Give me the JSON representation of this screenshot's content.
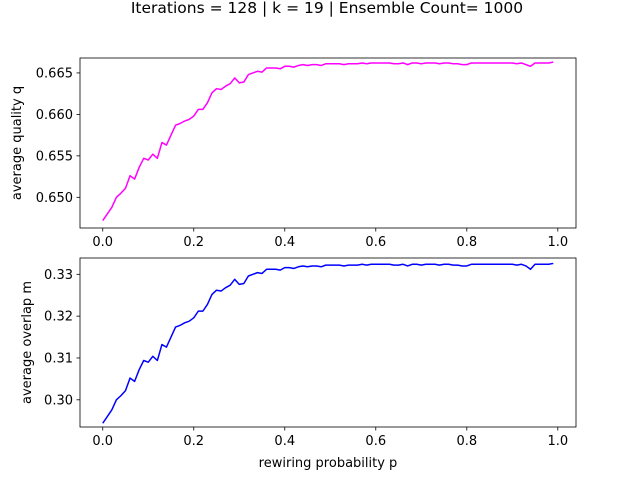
{
  "figure": {
    "suptitle": "Iterations = 128 |  k = 19 | Ensemble Count= 1000"
  },
  "chart_data": [
    {
      "type": "line",
      "xlabel": "rewiring probability p",
      "ylabel": "average quality q",
      "xlim": [
        -0.05,
        1.04
      ],
      "ylim": [
        0.6463,
        0.6668
      ],
      "xticks": [
        0.0,
        0.2,
        0.4,
        0.6,
        0.8,
        1.0
      ],
      "xtick_labels": [
        "0.0",
        "0.2",
        "0.4",
        "0.6",
        "0.8",
        "1.0"
      ],
      "yticks": [
        0.65,
        0.655,
        0.66,
        0.665
      ],
      "ytick_labels": [
        "0.650",
        "0.655",
        "0.660",
        "0.665"
      ],
      "grid": false,
      "series": [
        {
          "color": "#ff00ff",
          "x": [
            0.0,
            0.01,
            0.02,
            0.03,
            0.04,
            0.05,
            0.06,
            0.07,
            0.08,
            0.09,
            0.1,
            0.11,
            0.12,
            0.13,
            0.14,
            0.15,
            0.16,
            0.17,
            0.18,
            0.19,
            0.2,
            0.21,
            0.22,
            0.23,
            0.24,
            0.25,
            0.26,
            0.27,
            0.28,
            0.29,
            0.3,
            0.31,
            0.32,
            0.33,
            0.34,
            0.35,
            0.36,
            0.37,
            0.38,
            0.39,
            0.4,
            0.41,
            0.42,
            0.43,
            0.44,
            0.45,
            0.46,
            0.47,
            0.48,
            0.49,
            0.5,
            0.51,
            0.52,
            0.53,
            0.54,
            0.55,
            0.56,
            0.57,
            0.58,
            0.59,
            0.6,
            0.61,
            0.62,
            0.63,
            0.64,
            0.65,
            0.66,
            0.67,
            0.68,
            0.69,
            0.7,
            0.71,
            0.72,
            0.73,
            0.74,
            0.75,
            0.76,
            0.77,
            0.78,
            0.79,
            0.8,
            0.81,
            0.82,
            0.83,
            0.84,
            0.85,
            0.86,
            0.87,
            0.88,
            0.89,
            0.9,
            0.91,
            0.92,
            0.93,
            0.94,
            0.95,
            0.96,
            0.97,
            0.98,
            0.99
          ],
          "y": [
            0.6472,
            0.648,
            0.6488,
            0.65,
            0.6505,
            0.6511,
            0.6526,
            0.6522,
            0.6536,
            0.6547,
            0.6545,
            0.6552,
            0.6547,
            0.6566,
            0.6563,
            0.6575,
            0.6587,
            0.6589,
            0.6592,
            0.6594,
            0.6598,
            0.6606,
            0.6606,
            0.6614,
            0.6626,
            0.6631,
            0.663,
            0.6634,
            0.6637,
            0.6644,
            0.6638,
            0.6639,
            0.6648,
            0.665,
            0.6652,
            0.6651,
            0.6656,
            0.6656,
            0.6656,
            0.6655,
            0.6658,
            0.6658,
            0.6657,
            0.6659,
            0.666,
            0.6659,
            0.666,
            0.666,
            0.6659,
            0.6661,
            0.6661,
            0.6661,
            0.6661,
            0.666,
            0.6661,
            0.6661,
            0.6661,
            0.6662,
            0.6661,
            0.6662,
            0.6662,
            0.6662,
            0.6662,
            0.6662,
            0.6661,
            0.6661,
            0.6662,
            0.666,
            0.6662,
            0.6662,
            0.6661,
            0.6662,
            0.6662,
            0.6662,
            0.6661,
            0.6662,
            0.6662,
            0.6661,
            0.6661,
            0.666,
            0.666,
            0.6662,
            0.6662,
            0.6662,
            0.6662,
            0.6662,
            0.6662,
            0.6662,
            0.6662,
            0.6662,
            0.6662,
            0.6661,
            0.6662,
            0.666,
            0.6658,
            0.6662,
            0.6662,
            0.6662,
            0.6662,
            0.6663
          ]
        }
      ]
    },
    {
      "type": "line",
      "xlabel": "rewiring probability p",
      "ylabel": "average overlap m",
      "xlim": [
        -0.05,
        1.04
      ],
      "ylim": [
        0.2935,
        0.3339
      ],
      "xticks": [
        0.0,
        0.2,
        0.4,
        0.6,
        0.8,
        1.0
      ],
      "xtick_labels": [
        "0.0",
        "0.2",
        "0.4",
        "0.6",
        "0.8",
        "1.0"
      ],
      "yticks": [
        0.3,
        0.31,
        0.32,
        0.33
      ],
      "ytick_labels": [
        "0.30",
        "0.31",
        "0.32",
        "0.33"
      ],
      "grid": false,
      "series": [
        {
          "color": "#0000ff",
          "x": [
            0.0,
            0.01,
            0.02,
            0.03,
            0.04,
            0.05,
            0.06,
            0.07,
            0.08,
            0.09,
            0.1,
            0.11,
            0.12,
            0.13,
            0.14,
            0.15,
            0.16,
            0.17,
            0.18,
            0.19,
            0.2,
            0.21,
            0.22,
            0.23,
            0.24,
            0.25,
            0.26,
            0.27,
            0.28,
            0.29,
            0.3,
            0.31,
            0.32,
            0.33,
            0.34,
            0.35,
            0.36,
            0.37,
            0.38,
            0.39,
            0.4,
            0.41,
            0.42,
            0.43,
            0.44,
            0.45,
            0.46,
            0.47,
            0.48,
            0.49,
            0.5,
            0.51,
            0.52,
            0.53,
            0.54,
            0.55,
            0.56,
            0.57,
            0.58,
            0.59,
            0.6,
            0.61,
            0.62,
            0.63,
            0.64,
            0.65,
            0.66,
            0.67,
            0.68,
            0.69,
            0.7,
            0.71,
            0.72,
            0.73,
            0.74,
            0.75,
            0.76,
            0.77,
            0.78,
            0.79,
            0.8,
            0.81,
            0.82,
            0.83,
            0.84,
            0.85,
            0.86,
            0.87,
            0.88,
            0.89,
            0.9,
            0.91,
            0.92,
            0.93,
            0.94,
            0.95,
            0.96,
            0.97,
            0.98,
            0.99
          ],
          "y": [
            0.2944,
            0.296,
            0.2976,
            0.3,
            0.301,
            0.3022,
            0.3052,
            0.3044,
            0.3072,
            0.3094,
            0.309,
            0.3104,
            0.3094,
            0.3132,
            0.3126,
            0.315,
            0.3174,
            0.3178,
            0.3184,
            0.3188,
            0.3196,
            0.3212,
            0.3212,
            0.3228,
            0.3252,
            0.3262,
            0.326,
            0.3268,
            0.3274,
            0.3288,
            0.3276,
            0.3278,
            0.3296,
            0.33,
            0.3304,
            0.3302,
            0.3312,
            0.3312,
            0.3312,
            0.331,
            0.3316,
            0.3316,
            0.3314,
            0.3318,
            0.332,
            0.3318,
            0.332,
            0.332,
            0.3318,
            0.3322,
            0.3322,
            0.3322,
            0.3322,
            0.332,
            0.3322,
            0.3322,
            0.3322,
            0.3324,
            0.3322,
            0.3324,
            0.3324,
            0.3324,
            0.3324,
            0.3324,
            0.3322,
            0.3322,
            0.3324,
            0.332,
            0.3324,
            0.3324,
            0.3322,
            0.3324,
            0.3324,
            0.3324,
            0.3322,
            0.3324,
            0.3324,
            0.3322,
            0.3322,
            0.332,
            0.332,
            0.3324,
            0.3324,
            0.3324,
            0.3324,
            0.3324,
            0.3324,
            0.3324,
            0.3324,
            0.3324,
            0.3324,
            0.3322,
            0.3324,
            0.332,
            0.3312,
            0.3324,
            0.3324,
            0.3324,
            0.3324,
            0.3326
          ]
        }
      ]
    }
  ]
}
